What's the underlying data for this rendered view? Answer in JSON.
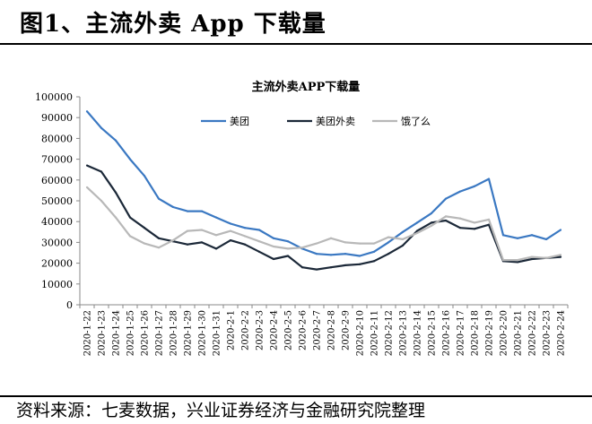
{
  "figure": {
    "title": "图1、主流外卖 App 下载量",
    "source": "资料来源：七麦数据，兴业证券经济与金融研究院整理"
  },
  "chart_data": {
    "type": "line",
    "title": "主流外卖APP下载量",
    "xlabel": "",
    "ylabel": "",
    "ylim": [
      0,
      100000
    ],
    "yticks": [
      0,
      10000,
      20000,
      30000,
      40000,
      50000,
      60000,
      70000,
      80000,
      90000,
      100000
    ],
    "grid": false,
    "legend": "top-center",
    "x": [
      "2020-1-22",
      "2020-1-23",
      "2020-1-24",
      "2020-1-25",
      "2020-1-26",
      "2020-1-27",
      "2020-1-28",
      "2020-1-29",
      "2020-1-30",
      "2020-1-31",
      "2020-2-1",
      "2020-2-2",
      "2020-2-3",
      "2020-2-4",
      "2020-2-5",
      "2020-2-6",
      "2020-2-7",
      "2020-2-8",
      "2020-2-9",
      "2020-2-10",
      "2020-2-11",
      "2020-2-12",
      "2020-2-13",
      "2020-2-14",
      "2020-2-15",
      "2020-2-16",
      "2020-2-17",
      "2020-2-18",
      "2020-2-19",
      "2020-2-20",
      "2020-2-21",
      "2020-2-22",
      "2020-2-23",
      "2020-2-24"
    ],
    "series": [
      {
        "name": "美团",
        "color": "#3a78c2",
        "values": [
          93000,
          85000,
          79000,
          70000,
          62000,
          51000,
          47000,
          45000,
          45000,
          42000,
          39000,
          37000,
          36000,
          32000,
          30500,
          27000,
          24500,
          24000,
          24500,
          23500,
          25500,
          30000,
          35000,
          39500,
          44000,
          51000,
          54500,
          57000,
          60500,
          33500,
          32000,
          33500,
          31500,
          36000
        ]
      },
      {
        "name": "美团外卖",
        "color": "#1b2838",
        "values": [
          67000,
          64000,
          54000,
          42000,
          37000,
          32000,
          30500,
          29000,
          30000,
          27000,
          31000,
          29000,
          25500,
          22000,
          23500,
          18000,
          17000,
          18000,
          19000,
          19500,
          21000,
          24500,
          28500,
          35500,
          39500,
          40500,
          37000,
          36500,
          38500,
          21000,
          20500,
          22000,
          22500,
          23000
        ]
      },
      {
        "name": "饿了么",
        "color": "#b8b8b8",
        "values": [
          56500,
          50000,
          42000,
          33000,
          29500,
          27500,
          31000,
          35500,
          36000,
          33500,
          35500,
          33000,
          30500,
          28000,
          27000,
          27500,
          29500,
          32000,
          30000,
          29500,
          29500,
          32500,
          31500,
          34500,
          38000,
          42500,
          41500,
          39500,
          41000,
          21500,
          21500,
          23000,
          22500,
          24000
        ]
      }
    ]
  }
}
